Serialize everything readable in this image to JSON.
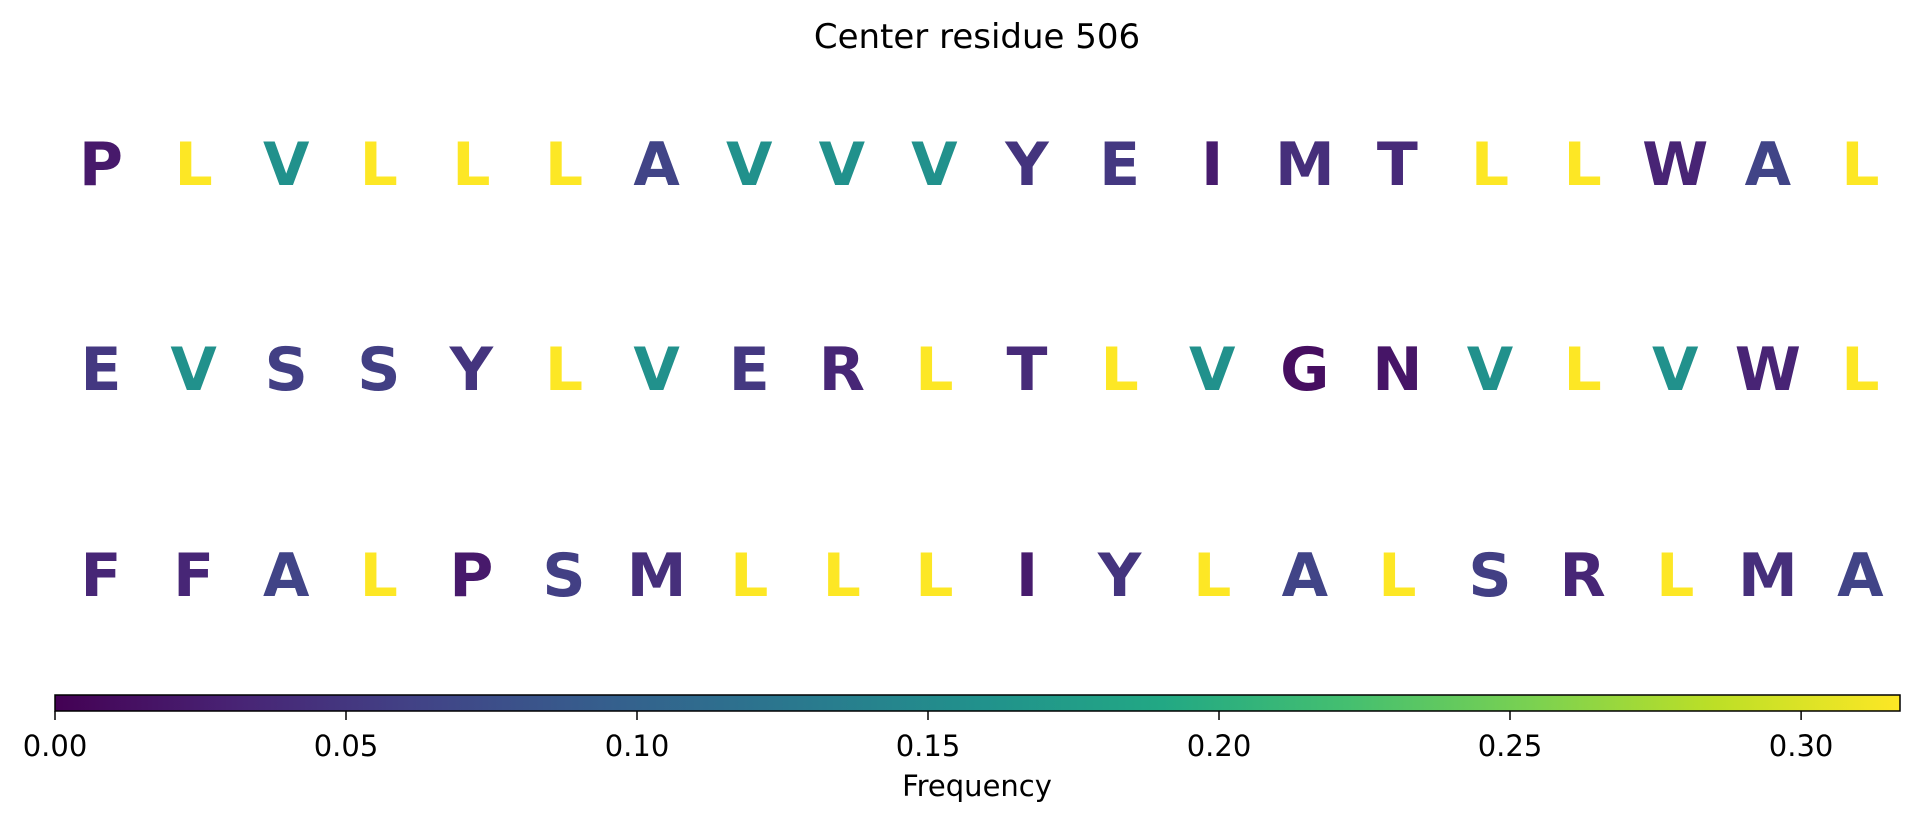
{
  "chart_data": {
    "type": "heatmap",
    "title": "Center residue 506",
    "colormap": "viridis",
    "colorbar": {
      "label": "Frequency",
      "range": [
        0.0,
        0.317
      ],
      "ticks": [
        0.0,
        0.05,
        0.1,
        0.15,
        0.2,
        0.25,
        0.3
      ],
      "tick_labels": [
        "0.00",
        "0.05",
        "0.10",
        "0.15",
        "0.20",
        "0.25",
        "0.30"
      ],
      "orientation": "horizontal",
      "position": "bottom"
    },
    "rows": [
      {
        "letters": [
          "P",
          "L",
          "V",
          "L",
          "L",
          "L",
          "A",
          "V",
          "V",
          "V",
          "Y",
          "E",
          "I",
          "M",
          "T",
          "L",
          "L",
          "W",
          "A",
          "L"
        ],
        "values": [
          0.022,
          0.317,
          0.159,
          0.317,
          0.317,
          0.317,
          0.063,
          0.159,
          0.159,
          0.159,
          0.048,
          0.052,
          0.024,
          0.043,
          0.038,
          0.317,
          0.317,
          0.032,
          0.063,
          0.317
        ]
      },
      {
        "letters": [
          "E",
          "V",
          "S",
          "S",
          "Y",
          "L",
          "V",
          "E",
          "R",
          "L",
          "T",
          "L",
          "V",
          "G",
          "N",
          "V",
          "L",
          "V",
          "W",
          "L"
        ],
        "values": [
          0.052,
          0.159,
          0.058,
          0.058,
          0.048,
          0.317,
          0.159,
          0.052,
          0.034,
          0.317,
          0.038,
          0.317,
          0.159,
          0.012,
          0.018,
          0.159,
          0.317,
          0.159,
          0.032,
          0.317
        ]
      },
      {
        "letters": [
          "F",
          "F",
          "A",
          "L",
          "P",
          "S",
          "M",
          "L",
          "L",
          "L",
          "I",
          "Y",
          "L",
          "A",
          "L",
          "S",
          "R",
          "L",
          "M",
          "A"
        ],
        "values": [
          0.034,
          0.034,
          0.063,
          0.317,
          0.022,
          0.058,
          0.043,
          0.317,
          0.317,
          0.317,
          0.024,
          0.048,
          0.317,
          0.063,
          0.317,
          0.058,
          0.034,
          0.317,
          0.043,
          0.063
        ]
      }
    ]
  }
}
